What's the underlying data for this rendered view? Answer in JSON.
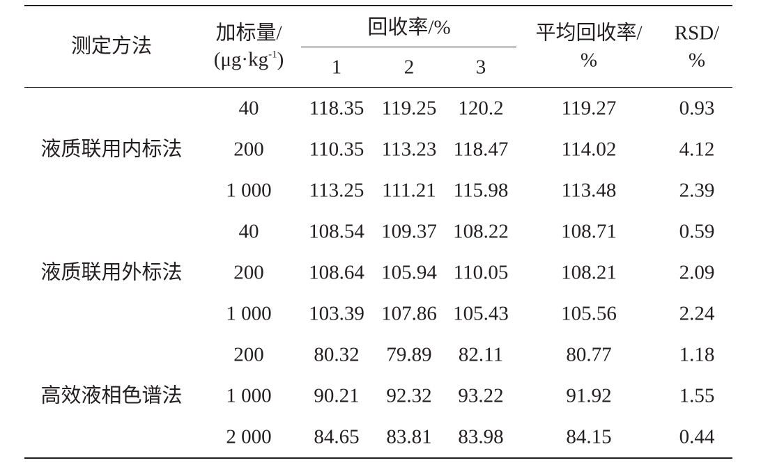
{
  "header": {
    "method": "测定方法",
    "spike": "加标量/",
    "unit": {
      "before": "(μg·kg",
      "sup": "-1",
      "after": ")"
    },
    "recovery": "回收率/%",
    "runs": [
      "1",
      "2",
      "3"
    ],
    "average": "平均回收率/",
    "average_unit": "%",
    "rsd": "RSD/",
    "rsd_unit": "%"
  },
  "groups": [
    {
      "method": "液质联用内标法",
      "rows": [
        [
          "40",
          "118.35",
          "119.25",
          "120.2",
          "119.27",
          "0.93"
        ],
        [
          "200",
          "110.35",
          "113.23",
          "118.47",
          "114.02",
          "4.12"
        ],
        [
          "1 000",
          "113.25",
          "111.21",
          "115.98",
          "113.48",
          "2.39"
        ]
      ]
    },
    {
      "method": "液质联用外标法",
      "rows": [
        [
          "40",
          "108.54",
          "109.37",
          "108.22",
          "108.71",
          "0.59"
        ],
        [
          "200",
          "108.64",
          "105.94",
          "110.05",
          "108.21",
          "2.09"
        ],
        [
          "1 000",
          "103.39",
          "107.86",
          "105.43",
          "105.56",
          "2.24"
        ]
      ]
    },
    {
      "method": "高效液相色谱法",
      "rows": [
        [
          "200",
          "80.32",
          "79.89",
          "82.11",
          "80.77",
          "1.18"
        ],
        [
          "1 000",
          "90.21",
          "92.32",
          "93.22",
          "91.92",
          "1.55"
        ],
        [
          "2 000",
          "84.65",
          "83.81",
          "83.98",
          "84.15",
          "0.44"
        ]
      ]
    }
  ]
}
